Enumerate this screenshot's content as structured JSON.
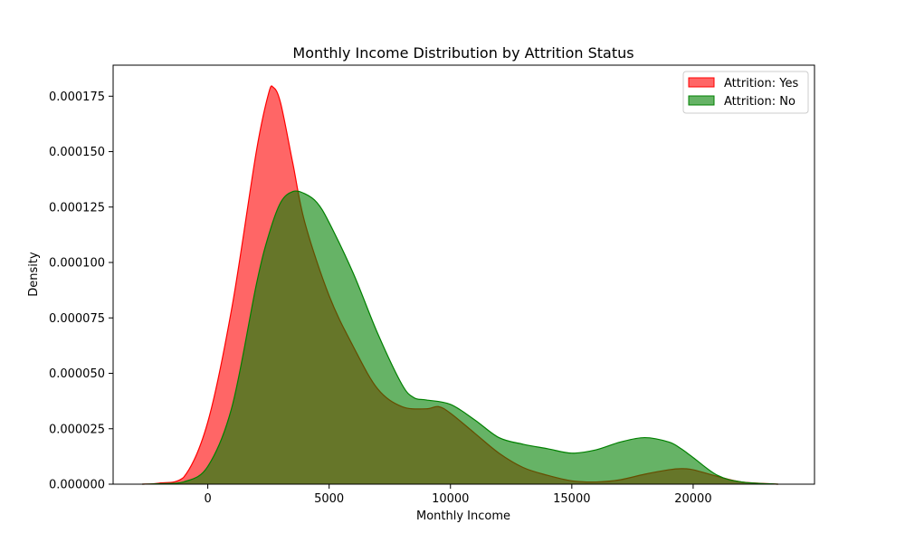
{
  "chart_data": {
    "type": "area",
    "title": "Monthly Income Distribution by Attrition Status",
    "xlabel": "Monthly Income",
    "ylabel": "Density",
    "xlim": [
      -3900,
      25000
    ],
    "ylim": [
      0,
      0.000189
    ],
    "x_ticks": [
      0,
      5000,
      10000,
      15000,
      20000
    ],
    "x_tick_labels": [
      "0",
      "5000",
      "10000",
      "15000",
      "20000"
    ],
    "y_ticks": [
      0,
      2.5e-05,
      5e-05,
      7.5e-05,
      0.0001,
      0.000125,
      0.00015,
      0.000175
    ],
    "y_tick_labels": [
      "0.000000",
      "0.000025",
      "0.000050",
      "0.000075",
      "0.000100",
      "0.000125",
      "0.000150",
      "0.000175"
    ],
    "grid": false,
    "legend_position": "top-right",
    "series": [
      {
        "name": "Attrition: Yes",
        "color": "#ff0000",
        "fill_opacity": 0.6,
        "x": [
          -2700,
          -2000,
          -1000,
          0,
          1000,
          2000,
          2500,
          2700,
          3000,
          3500,
          4000,
          5000,
          6000,
          7000,
          8000,
          9000,
          9500,
          10000,
          11000,
          12000,
          13000,
          14000,
          15000,
          16000,
          17000,
          18000,
          19000,
          19500,
          20000,
          21000,
          22000,
          23500
        ],
        "y": [
          0,
          5e-07,
          3e-06,
          2.8e-05,
          8e-05,
          0.00015,
          0.000176,
          0.000179,
          0.000172,
          0.000145,
          0.000118,
          8.5e-05,
          6.2e-05,
          4.3e-05,
          3.5e-05,
          3.4e-05,
          3.5e-05,
          3.2e-05,
          2.3e-05,
          1.4e-05,
          7.5e-06,
          4e-06,
          1.5e-06,
          1e-06,
          2e-06,
          4.5e-06,
          6.5e-06,
          7e-06,
          6.5e-06,
          3.5e-06,
          1e-06,
          0
        ]
      },
      {
        "name": "Attrition: No",
        "color": "#008000",
        "fill_opacity": 0.6,
        "x": [
          -2700,
          -2000,
          -1000,
          0,
          1000,
          2000,
          2500,
          3000,
          3500,
          4000,
          4500,
          5000,
          6000,
          7000,
          8000,
          8500,
          9000,
          10000,
          11000,
          12000,
          13000,
          14000,
          15000,
          16000,
          17000,
          18000,
          19000,
          19500,
          20000,
          21000,
          22000,
          23500
        ],
        "y": [
          0,
          2e-07,
          1e-06,
          8e-06,
          3.5e-05,
          9e-05,
          0.000112,
          0.000127,
          0.000132,
          0.000131,
          0.000127,
          0.000118,
          9.5e-05,
          6.8e-05,
          4.5e-05,
          3.9e-05,
          3.8e-05,
          3.6e-05,
          2.9e-05,
          2.1e-05,
          1.8e-05,
          1.6e-05,
          1.4e-05,
          1.55e-05,
          1.9e-05,
          2.1e-05,
          1.9e-05,
          1.6e-05,
          1.2e-05,
          4e-06,
          1e-06,
          0
        ]
      }
    ]
  }
}
